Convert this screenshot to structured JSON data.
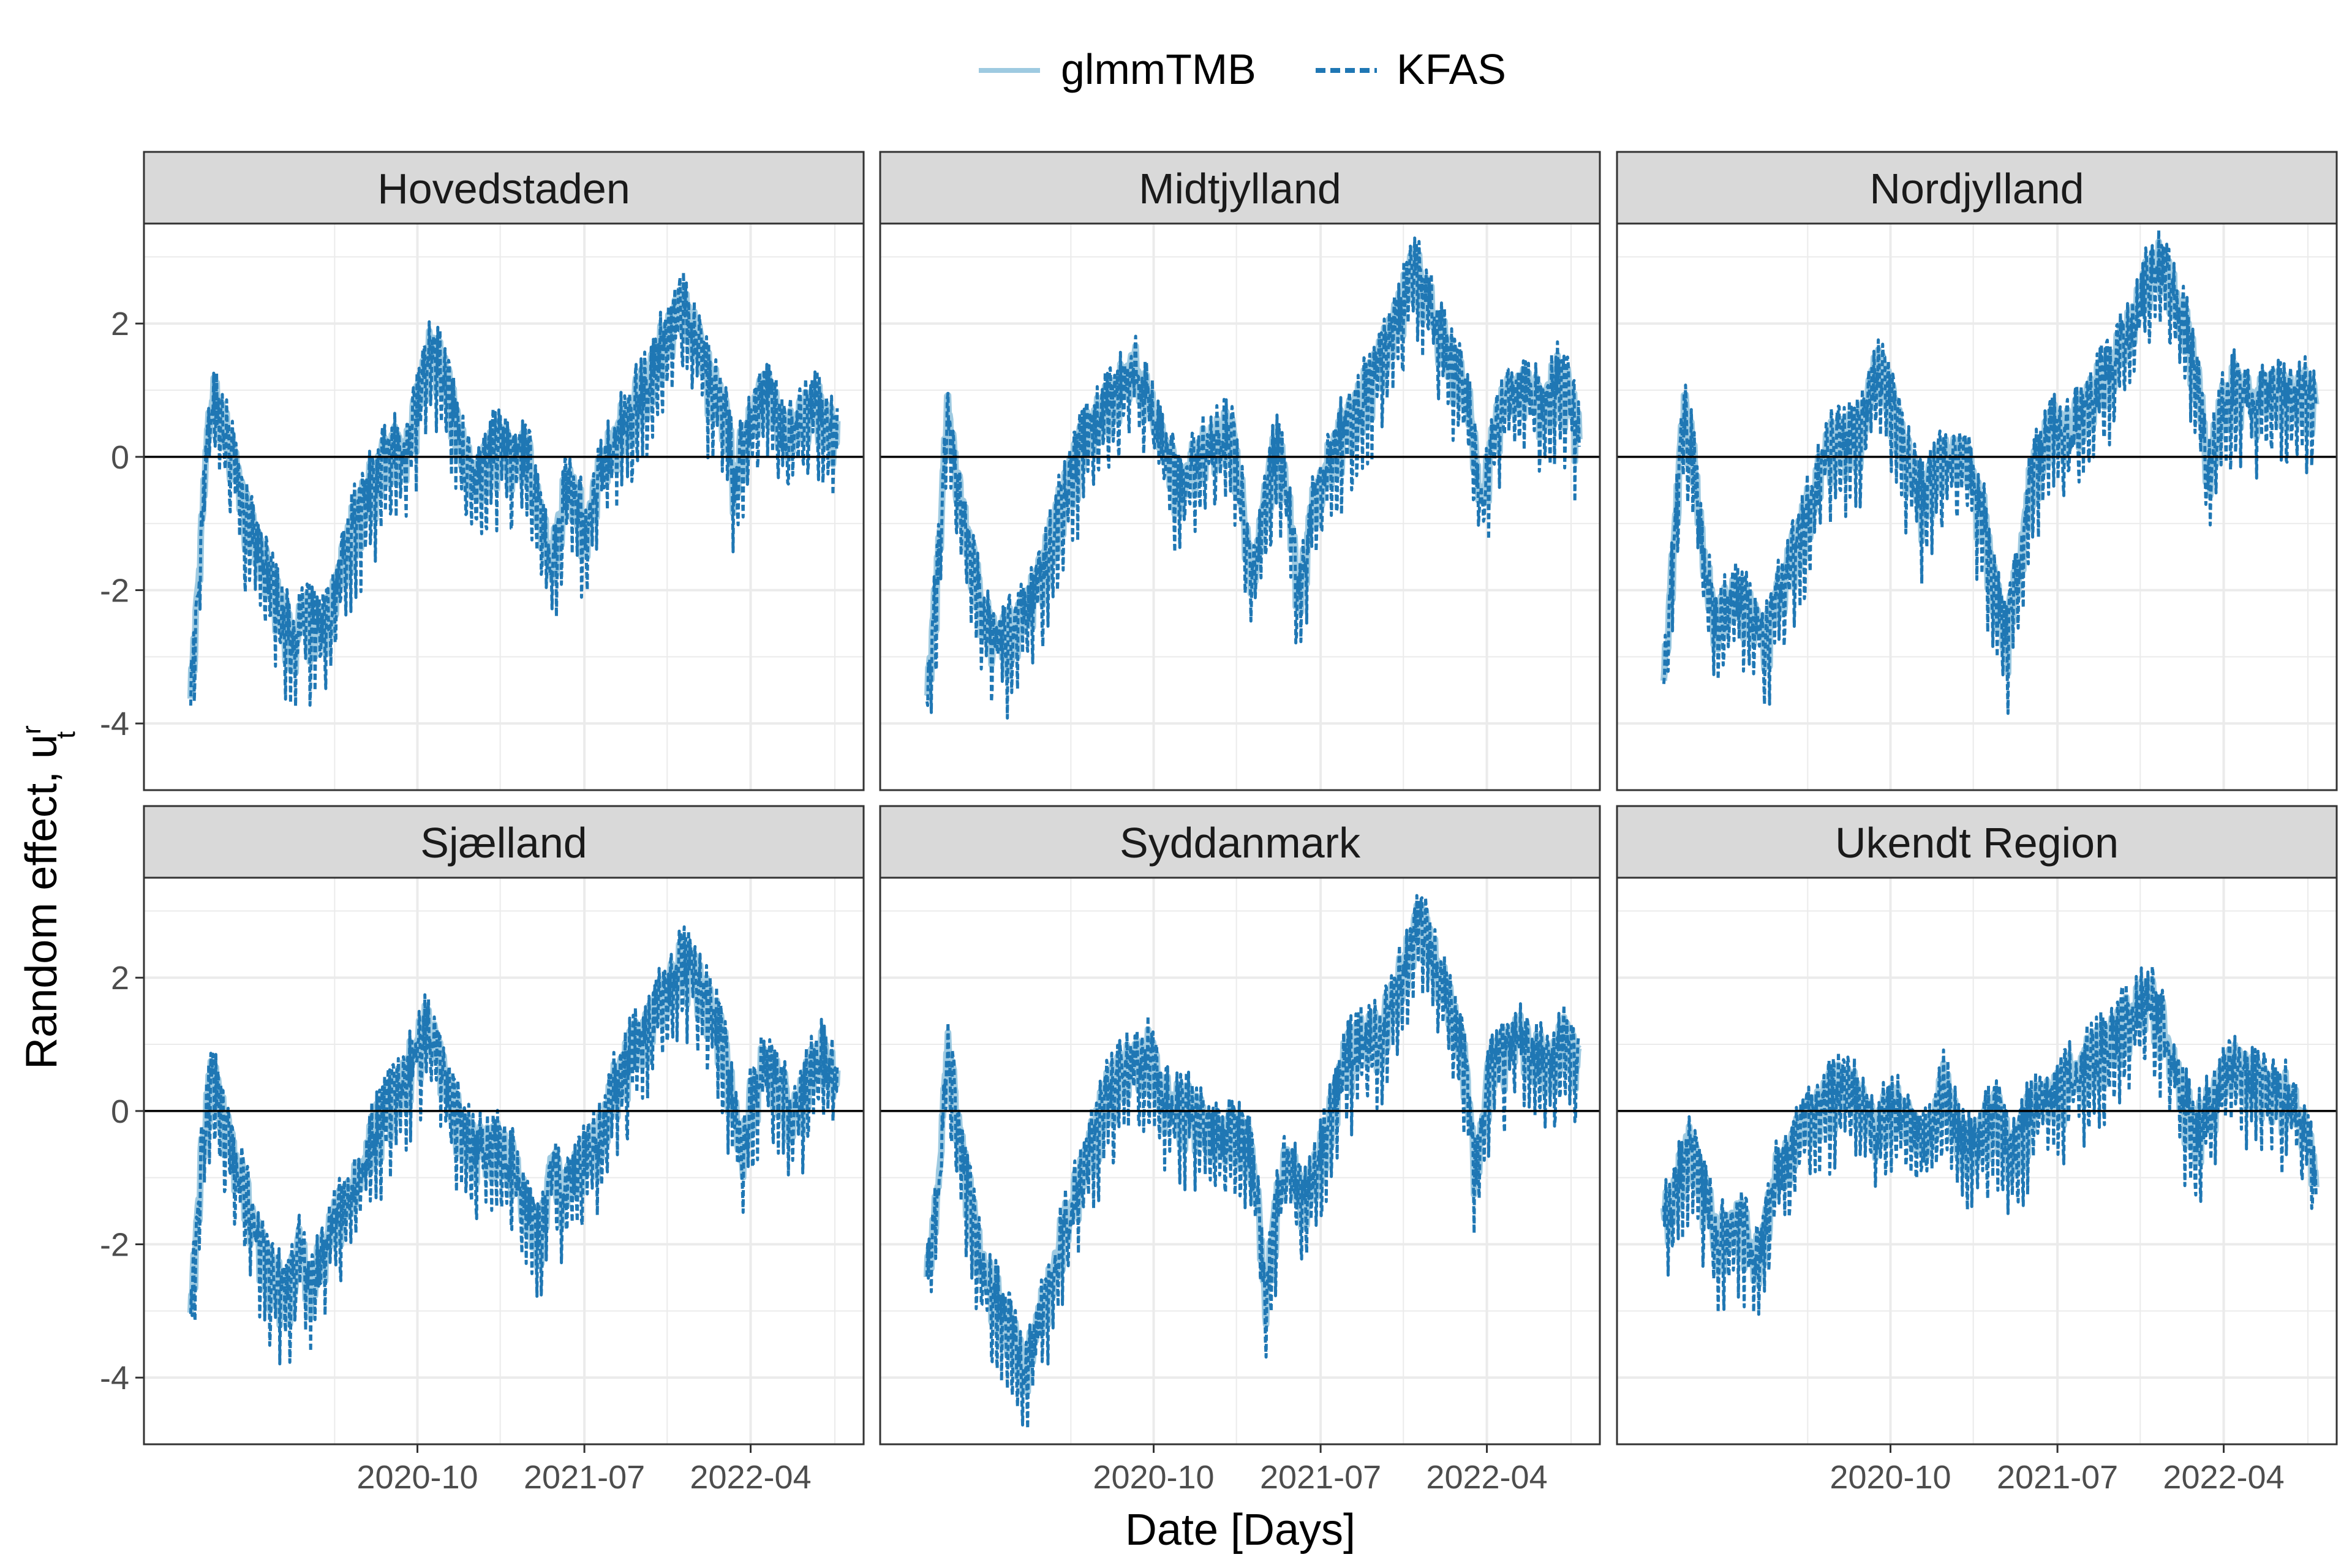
{
  "colors": {
    "glmmTMB": "#9ecae1",
    "KFAS": "#1f77b4",
    "strip_fill": "#d9d9d9",
    "grid": "#ebebeb",
    "zero_line": "#000000"
  },
  "chart_data": {
    "type": "line",
    "layout": "faceted 2x3, shared axes",
    "xlabel": "Date [Days]",
    "ylabel": "Random effect, u",
    "ylabel_super": "r",
    "ylabel_sub": "t",
    "x_range": [
      "2020-03",
      "2022-10"
    ],
    "x_ticks": [
      "2020-10",
      "2021-07",
      "2022-04"
    ],
    "y_range": [
      -5,
      3.5
    ],
    "y_ticks": [
      -4,
      -2,
      0,
      2
    ],
    "legend": [
      {
        "name": "glmmTMB",
        "style": "solid"
      },
      {
        "name": "KFAS",
        "style": "dashed"
      }
    ],
    "legend_position": "top",
    "reference_line": 0,
    "facets": [
      {
        "name": "Hovedstaden",
        "points": [
          [
            0,
            -3.5
          ],
          [
            0.03,
            0.5
          ],
          [
            0.04,
            1.1
          ],
          [
            0.07,
            0.2
          ],
          [
            0.1,
            -0.8
          ],
          [
            0.14,
            -1.8
          ],
          [
            0.18,
            -2.7
          ],
          [
            0.2,
            -2.2
          ],
          [
            0.23,
            -2.5
          ],
          [
            0.26,
            -1.7
          ],
          [
            0.29,
            -0.7
          ],
          [
            0.32,
            -0.2
          ],
          [
            0.35,
            0.2
          ],
          [
            0.38,
            0.3
          ],
          [
            0.4,
            1.0
          ],
          [
            0.42,
            1.85
          ],
          [
            0.45,
            1.2
          ],
          [
            0.48,
            0.0
          ],
          [
            0.5,
            -0.2
          ],
          [
            0.53,
            0.3
          ],
          [
            0.56,
            0.2
          ],
          [
            0.59,
            0.1
          ],
          [
            0.61,
            -0.8
          ],
          [
            0.63,
            -1.4
          ],
          [
            0.65,
            -0.5
          ],
          [
            0.67,
            -0.3
          ],
          [
            0.69,
            -1.0
          ],
          [
            0.71,
            -0.3
          ],
          [
            0.74,
            0.4
          ],
          [
            0.77,
            0.8
          ],
          [
            0.8,
            1.3
          ],
          [
            0.83,
            1.9
          ],
          [
            0.86,
            2.35
          ],
          [
            0.88,
            2.0
          ],
          [
            0.9,
            1.5
          ],
          [
            0.92,
            1.1
          ],
          [
            0.94,
            0.5
          ],
          [
            0.95,
            -0.3
          ],
          [
            0.96,
            0.2
          ],
          [
            0.98,
            0.6
          ],
          [
            1.0,
            1.2
          ],
          [
            1.02,
            0.8
          ],
          [
            1.04,
            0.4
          ],
          [
            1.07,
            0.7
          ],
          [
            1.1,
            0.9
          ],
          [
            1.13,
            0.3
          ]
        ]
      },
      {
        "name": "Midtjylland",
        "points": [
          [
            0,
            -3.5
          ],
          [
            0.02,
            -1.5
          ],
          [
            0.035,
            1.0
          ],
          [
            0.05,
            0.0
          ],
          [
            0.07,
            -1.0
          ],
          [
            0.1,
            -2.3
          ],
          [
            0.13,
            -2.6
          ],
          [
            0.16,
            -2.4
          ],
          [
            0.19,
            -1.8
          ],
          [
            0.22,
            -1.0
          ],
          [
            0.25,
            -0.2
          ],
          [
            0.28,
            0.5
          ],
          [
            0.31,
            0.8
          ],
          [
            0.34,
            1.2
          ],
          [
            0.36,
            1.6
          ],
          [
            0.38,
            1.1
          ],
          [
            0.41,
            0.3
          ],
          [
            0.44,
            -0.3
          ],
          [
            0.47,
            0.1
          ],
          [
            0.5,
            0.3
          ],
          [
            0.53,
            0.5
          ],
          [
            0.55,
            -0.5
          ],
          [
            0.57,
            -1.8
          ],
          [
            0.59,
            -0.6
          ],
          [
            0.61,
            0.3
          ],
          [
            0.63,
            -0.4
          ],
          [
            0.65,
            -2.0
          ],
          [
            0.67,
            -0.8
          ],
          [
            0.7,
            0.0
          ],
          [
            0.73,
            0.6
          ],
          [
            0.76,
            1.0
          ],
          [
            0.8,
            1.8
          ],
          [
            0.83,
            2.4
          ],
          [
            0.85,
            3.0
          ],
          [
            0.87,
            2.6
          ],
          [
            0.9,
            1.9
          ],
          [
            0.93,
            1.3
          ],
          [
            0.95,
            0.8
          ],
          [
            0.96,
            0.0
          ],
          [
            0.97,
            -0.5
          ],
          [
            0.99,
            0.4
          ],
          [
            1.01,
            1.0
          ],
          [
            1.04,
            1.2
          ],
          [
            1.07,
            0.9
          ],
          [
            1.1,
            1.3
          ],
          [
            1.12,
            1.1
          ],
          [
            1.14,
            0.4
          ]
        ]
      },
      {
        "name": "Nordjylland",
        "points": [
          [
            0,
            -3.3
          ],
          [
            0.02,
            -1.0
          ],
          [
            0.035,
            0.9
          ],
          [
            0.05,
            0.2
          ],
          [
            0.07,
            -1.4
          ],
          [
            0.09,
            -2.4
          ],
          [
            0.12,
            -2.0
          ],
          [
            0.15,
            -2.2
          ],
          [
            0.18,
            -2.6
          ],
          [
            0.2,
            -2.0
          ],
          [
            0.23,
            -1.2
          ],
          [
            0.26,
            -0.5
          ],
          [
            0.29,
            0.3
          ],
          [
            0.32,
            0.4
          ],
          [
            0.35,
            0.6
          ],
          [
            0.37,
            1.5
          ],
          [
            0.39,
            1.2
          ],
          [
            0.42,
            0.2
          ],
          [
            0.45,
            -0.5
          ],
          [
            0.47,
            -0.2
          ],
          [
            0.5,
            0.3
          ],
          [
            0.53,
            0.0
          ],
          [
            0.56,
            -0.8
          ],
          [
            0.58,
            -2.0
          ],
          [
            0.6,
            -2.6
          ],
          [
            0.62,
            -1.5
          ],
          [
            0.64,
            -0.3
          ],
          [
            0.66,
            0.2
          ],
          [
            0.68,
            0.6
          ],
          [
            0.71,
            0.5
          ],
          [
            0.74,
            1.0
          ],
          [
            0.77,
            1.3
          ],
          [
            0.8,
            1.8
          ],
          [
            0.83,
            2.4
          ],
          [
            0.86,
            3.1
          ],
          [
            0.89,
            2.6
          ],
          [
            0.92,
            1.8
          ],
          [
            0.94,
            1.0
          ],
          [
            0.95,
            -0.3
          ],
          [
            0.96,
            0.2
          ],
          [
            0.98,
            1.0
          ],
          [
            1.0,
            1.2
          ],
          [
            1.03,
            1.0
          ],
          [
            1.06,
            1.2
          ],
          [
            1.09,
            1.0
          ],
          [
            1.12,
            1.1
          ],
          [
            1.14,
            0.8
          ]
        ]
      },
      {
        "name": "Sjælland",
        "points": [
          [
            0,
            -3.0
          ],
          [
            0.02,
            -0.5
          ],
          [
            0.035,
            0.6
          ],
          [
            0.05,
            0.3
          ],
          [
            0.08,
            -0.7
          ],
          [
            0.11,
            -1.6
          ],
          [
            0.14,
            -2.4
          ],
          [
            0.17,
            -2.6
          ],
          [
            0.19,
            -2.0
          ],
          [
            0.21,
            -2.5
          ],
          [
            0.24,
            -1.8
          ],
          [
            0.27,
            -1.2
          ],
          [
            0.3,
            -0.7
          ],
          [
            0.33,
            0.0
          ],
          [
            0.36,
            0.4
          ],
          [
            0.39,
            1.0
          ],
          [
            0.41,
            1.4
          ],
          [
            0.43,
            1.1
          ],
          [
            0.45,
            0.4
          ],
          [
            0.48,
            -0.3
          ],
          [
            0.51,
            -0.5
          ],
          [
            0.54,
            -0.4
          ],
          [
            0.57,
            -0.8
          ],
          [
            0.59,
            -1.4
          ],
          [
            0.61,
            -1.9
          ],
          [
            0.63,
            -0.6
          ],
          [
            0.65,
            -1.1
          ],
          [
            0.67,
            -0.8
          ],
          [
            0.7,
            -0.5
          ],
          [
            0.72,
            -0.2
          ],
          [
            0.74,
            0.5
          ],
          [
            0.77,
            1.0
          ],
          [
            0.8,
            1.4
          ],
          [
            0.83,
            1.9
          ],
          [
            0.86,
            2.35
          ],
          [
            0.88,
            2.2
          ],
          [
            0.9,
            1.8
          ],
          [
            0.93,
            1.2
          ],
          [
            0.95,
            0.2
          ],
          [
            0.96,
            -0.6
          ],
          [
            0.98,
            0.3
          ],
          [
            1.0,
            0.8
          ],
          [
            1.03,
            0.6
          ],
          [
            1.05,
            0.0
          ],
          [
            1.07,
            0.4
          ],
          [
            1.1,
            1.0
          ],
          [
            1.13,
            0.5
          ]
        ]
      },
      {
        "name": "Syddanmark",
        "points": [
          [
            0,
            -2.5
          ],
          [
            0.02,
            -1.0
          ],
          [
            0.035,
            1.1
          ],
          [
            0.05,
            0.2
          ],
          [
            0.07,
            -0.9
          ],
          [
            0.09,
            -2.0
          ],
          [
            0.12,
            -2.6
          ],
          [
            0.15,
            -3.3
          ],
          [
            0.17,
            -3.7
          ],
          [
            0.19,
            -3.2
          ],
          [
            0.22,
            -2.2
          ],
          [
            0.25,
            -1.4
          ],
          [
            0.28,
            -0.6
          ],
          [
            0.31,
            0.3
          ],
          [
            0.34,
            0.7
          ],
          [
            0.37,
            0.9
          ],
          [
            0.39,
            1.0
          ],
          [
            0.41,
            0.4
          ],
          [
            0.44,
            0.2
          ],
          [
            0.47,
            0.1
          ],
          [
            0.5,
            -0.3
          ],
          [
            0.53,
            -0.2
          ],
          [
            0.56,
            -0.3
          ],
          [
            0.58,
            -1.5
          ],
          [
            0.59,
            -2.8
          ],
          [
            0.61,
            -1.4
          ],
          [
            0.63,
            -0.6
          ],
          [
            0.66,
            -1.3
          ],
          [
            0.68,
            -0.8
          ],
          [
            0.7,
            -0.2
          ],
          [
            0.73,
            0.9
          ],
          [
            0.76,
            1.2
          ],
          [
            0.79,
            1.3
          ],
          [
            0.82,
            1.9
          ],
          [
            0.84,
            2.5
          ],
          [
            0.86,
            3.0
          ],
          [
            0.88,
            2.6
          ],
          [
            0.9,
            2.1
          ],
          [
            0.92,
            1.5
          ],
          [
            0.94,
            0.8
          ],
          [
            0.95,
            -0.1
          ],
          [
            0.96,
            -0.8
          ],
          [
            0.98,
            0.5
          ],
          [
            1.0,
            1.0
          ],
          [
            1.03,
            1.3
          ],
          [
            1.06,
            1.0
          ],
          [
            1.09,
            0.8
          ],
          [
            1.12,
            1.3
          ],
          [
            1.14,
            0.7
          ]
        ]
      },
      {
        "name": "Ukendt Region",
        "points": [
          [
            0,
            -1.5
          ],
          [
            0.02,
            -1.2
          ],
          [
            0.04,
            -0.3
          ],
          [
            0.06,
            -0.8
          ],
          [
            0.08,
            -1.4
          ],
          [
            0.1,
            -1.8
          ],
          [
            0.13,
            -1.4
          ],
          [
            0.15,
            -1.9
          ],
          [
            0.17,
            -2.1
          ],
          [
            0.19,
            -1.0
          ],
          [
            0.22,
            -0.5
          ],
          [
            0.25,
            0.0
          ],
          [
            0.28,
            0.3
          ],
          [
            0.31,
            0.5
          ],
          [
            0.34,
            0.3
          ],
          [
            0.37,
            -0.2
          ],
          [
            0.4,
            0.2
          ],
          [
            0.43,
            0.0
          ],
          [
            0.46,
            -0.4
          ],
          [
            0.49,
            0.5
          ],
          [
            0.52,
            -0.4
          ],
          [
            0.55,
            -0.3
          ],
          [
            0.58,
            0.2
          ],
          [
            0.61,
            -0.6
          ],
          [
            0.64,
            0.1
          ],
          [
            0.67,
            0.4
          ],
          [
            0.7,
            0.5
          ],
          [
            0.73,
            0.8
          ],
          [
            0.76,
            1.0
          ],
          [
            0.79,
            1.3
          ],
          [
            0.82,
            1.6
          ],
          [
            0.85,
            1.8
          ],
          [
            0.87,
            1.5
          ],
          [
            0.89,
            0.9
          ],
          [
            0.91,
            0.3
          ],
          [
            0.93,
            -0.2
          ],
          [
            0.95,
            0.1
          ],
          [
            0.97,
            0.4
          ],
          [
            0.99,
            0.8
          ],
          [
            1.01,
            0.9
          ],
          [
            1.04,
            0.5
          ],
          [
            1.06,
            0.3
          ],
          [
            1.08,
            0.4
          ],
          [
            1.1,
            0.3
          ],
          [
            1.12,
            -0.1
          ],
          [
            1.14,
            -1.0
          ]
        ]
      }
    ]
  }
}
